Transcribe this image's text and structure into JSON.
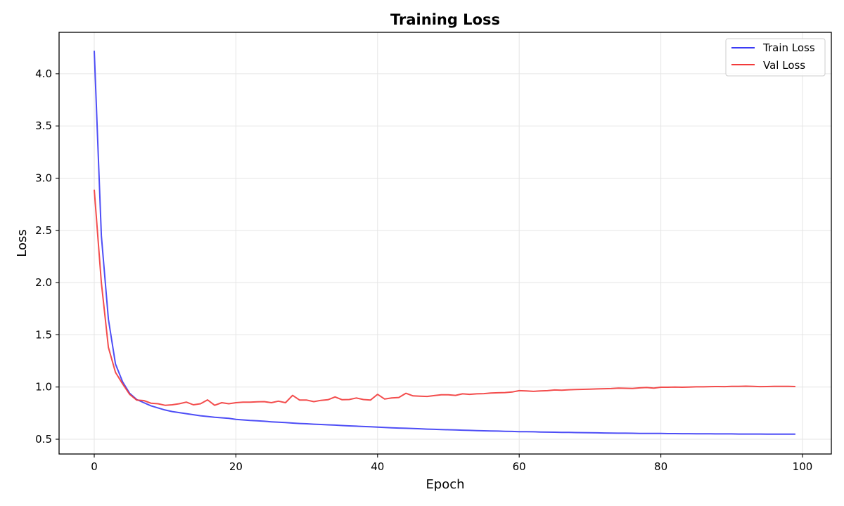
{
  "chart_data": {
    "type": "line",
    "title": "Training Loss",
    "xlabel": "Epoch",
    "ylabel": "Loss",
    "xlim": [
      -5,
      104
    ],
    "ylim": [
      0.36,
      4.39
    ],
    "xticks": [
      0,
      20,
      40,
      60,
      80,
      100
    ],
    "yticks": [
      0.5,
      1.0,
      1.5,
      2.0,
      2.5,
      3.0,
      3.5,
      4.0
    ],
    "xtick_labels": [
      "0",
      "20",
      "40",
      "60",
      "80",
      "100"
    ],
    "ytick_labels": [
      "0.5",
      "1.0",
      "1.5",
      "2.0",
      "2.5",
      "3.0",
      "3.5",
      "4.0"
    ],
    "grid": true,
    "legend_position": "upper right",
    "x": [
      0,
      1,
      2,
      3,
      4,
      5,
      6,
      7,
      8,
      9,
      10,
      11,
      12,
      13,
      14,
      15,
      16,
      17,
      18,
      19,
      20,
      21,
      22,
      23,
      24,
      25,
      26,
      27,
      28,
      29,
      30,
      31,
      32,
      33,
      34,
      35,
      36,
      37,
      38,
      39,
      40,
      41,
      42,
      43,
      44,
      45,
      46,
      47,
      48,
      49,
      50,
      51,
      52,
      53,
      54,
      55,
      56,
      57,
      58,
      59,
      60,
      61,
      62,
      63,
      64,
      65,
      66,
      67,
      68,
      69,
      70,
      71,
      72,
      73,
      74,
      75,
      76,
      77,
      78,
      79,
      80,
      81,
      82,
      83,
      84,
      85,
      86,
      87,
      88,
      89,
      90,
      91,
      92,
      93,
      94,
      95,
      96,
      97,
      98,
      99
    ],
    "series": [
      {
        "name": "Train Loss",
        "color": "#3b3bf5",
        "values": [
          4.22,
          2.45,
          1.65,
          1.22,
          1.05,
          0.94,
          0.88,
          0.85,
          0.82,
          0.8,
          0.78,
          0.765,
          0.755,
          0.745,
          0.735,
          0.725,
          0.718,
          0.71,
          0.705,
          0.7,
          0.69,
          0.685,
          0.68,
          0.676,
          0.672,
          0.667,
          0.663,
          0.66,
          0.655,
          0.651,
          0.648,
          0.644,
          0.641,
          0.638,
          0.635,
          0.631,
          0.628,
          0.625,
          0.622,
          0.619,
          0.616,
          0.613,
          0.61,
          0.607,
          0.605,
          0.602,
          0.6,
          0.597,
          0.595,
          0.593,
          0.591,
          0.589,
          0.587,
          0.585,
          0.583,
          0.581,
          0.579,
          0.578,
          0.576,
          0.575,
          0.573,
          0.572,
          0.571,
          0.569,
          0.568,
          0.567,
          0.566,
          0.565,
          0.564,
          0.563,
          0.562,
          0.561,
          0.56,
          0.559,
          0.558,
          0.558,
          0.557,
          0.556,
          0.556,
          0.555,
          0.555,
          0.554,
          0.554,
          0.553,
          0.553,
          0.552,
          0.552,
          0.552,
          0.551,
          0.551,
          0.551,
          0.55,
          0.55,
          0.55,
          0.55,
          0.549,
          0.549,
          0.549,
          0.549,
          0.549
        ]
      },
      {
        "name": "Val Loss",
        "color": "#f23a3a",
        "values": [
          2.89,
          2.0,
          1.38,
          1.14,
          1.03,
          0.93,
          0.875,
          0.87,
          0.845,
          0.84,
          0.825,
          0.83,
          0.84,
          0.855,
          0.83,
          0.84,
          0.877,
          0.825,
          0.85,
          0.84,
          0.85,
          0.855,
          0.855,
          0.858,
          0.86,
          0.85,
          0.865,
          0.85,
          0.92,
          0.875,
          0.875,
          0.86,
          0.872,
          0.878,
          0.905,
          0.878,
          0.88,
          0.895,
          0.88,
          0.875,
          0.93,
          0.885,
          0.895,
          0.9,
          0.94,
          0.915,
          0.912,
          0.91,
          0.918,
          0.925,
          0.925,
          0.92,
          0.935,
          0.93,
          0.935,
          0.937,
          0.942,
          0.945,
          0.947,
          0.952,
          0.965,
          0.962,
          0.958,
          0.962,
          0.965,
          0.972,
          0.97,
          0.974,
          0.976,
          0.978,
          0.98,
          0.982,
          0.984,
          0.985,
          0.99,
          0.988,
          0.986,
          0.992,
          0.995,
          0.99,
          0.998,
          0.998,
          1.0,
          0.998,
          1.0,
          1.002,
          1.002,
          1.004,
          1.005,
          1.004,
          1.006,
          1.006,
          1.008,
          1.006,
          1.004,
          1.005,
          1.006,
          1.006,
          1.007,
          1.005
        ]
      }
    ]
  }
}
